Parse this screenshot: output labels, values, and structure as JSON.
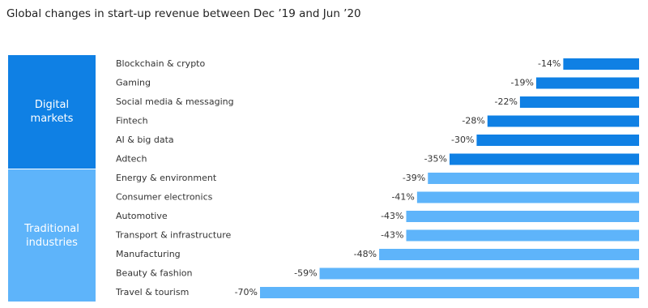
{
  "chart_data": {
    "type": "bar",
    "orientation": "horizontal",
    "title": "Global changes in start-up revenue between Dec ’19 and Jun ’20",
    "series": [
      {
        "name": "Digital markets",
        "color": "#0f80e4",
        "categories": [
          "Blockchain & crypto",
          "Gaming",
          "Social media & messaging",
          "Fintech",
          "AI & big data",
          "Adtech"
        ],
        "values": [
          -14,
          -19,
          -22,
          -28,
          -30,
          -35
        ],
        "value_labels": [
          "-14%",
          "-19%",
          "-22%",
          "-28%",
          "-30%",
          "-35%"
        ]
      },
      {
        "name": "Traditional industries",
        "color": "#5eb4fa",
        "categories": [
          "Energy & environment",
          "Consumer electronics",
          "Automotive",
          "Transport & infrastructure",
          "Manufacturing",
          "Beauty & fashion",
          "Travel & tourism"
        ],
        "values": [
          -39,
          -41,
          -43,
          -43,
          -48,
          -59,
          -70
        ],
        "value_labels": [
          "-39%",
          "-41%",
          "-43%",
          "-43%",
          "-48%",
          "-59%",
          "-70%"
        ]
      }
    ]
  }
}
